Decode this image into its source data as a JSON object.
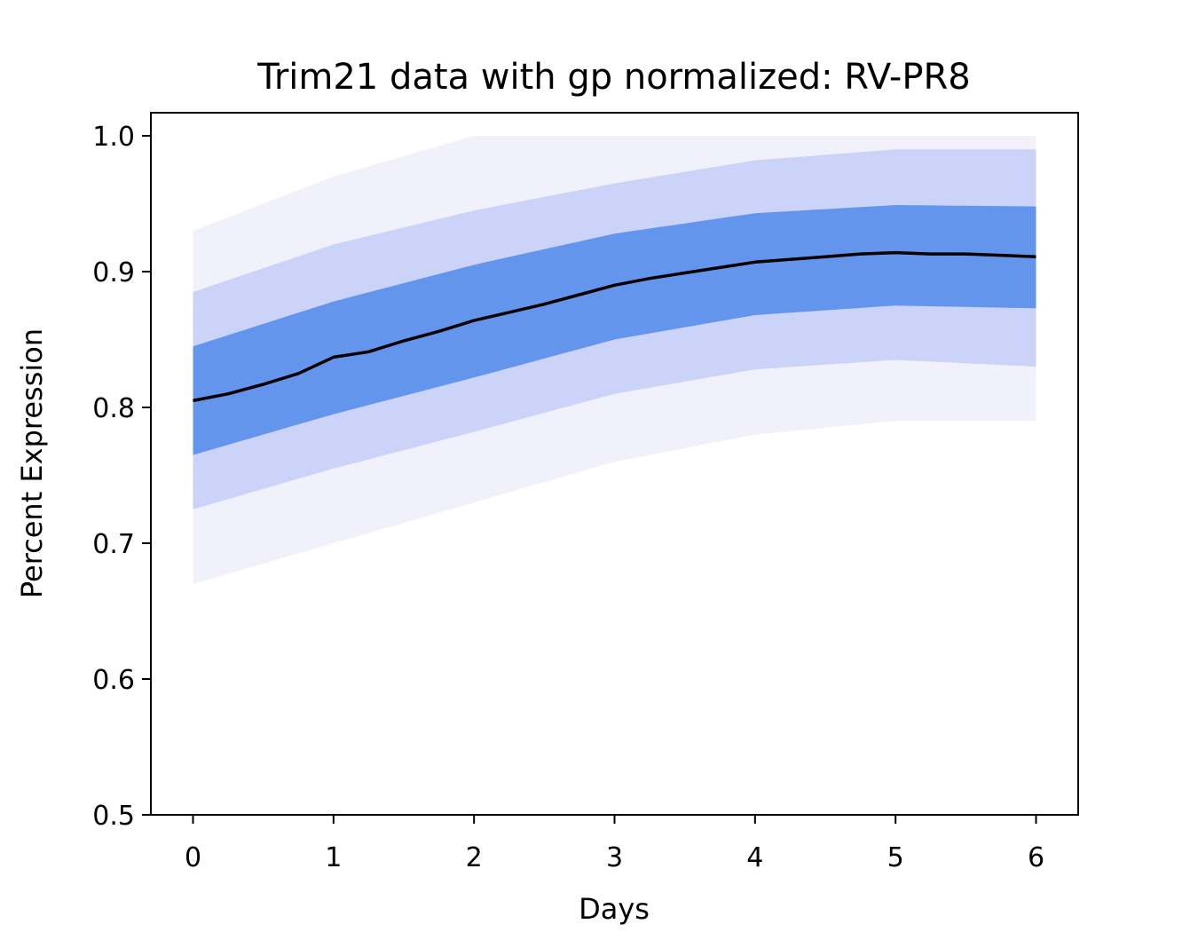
{
  "chart_data": {
    "type": "line",
    "title": "Trim21 data with gp normalized: RV-PR8",
    "xlabel": "Days",
    "ylabel": "Percent Expression",
    "xlim": [
      -0.3,
      6.3
    ],
    "ylim": [
      0.5,
      1.017
    ],
    "xticks": [
      0,
      1,
      2,
      3,
      4,
      5,
      6
    ],
    "xtick_labels": [
      "0",
      "1",
      "2",
      "3",
      "4",
      "5",
      "6"
    ],
    "yticks": [
      0.5,
      0.6,
      0.7,
      0.8,
      0.9,
      1.0
    ],
    "ytick_labels": [
      "0.5",
      "0.6",
      "0.7",
      "0.8",
      "0.9",
      "1.0"
    ],
    "grid": false,
    "legend": "none",
    "colors": {
      "band": "#6495ED",
      "band_faint": "#c4cef8",
      "haze": "#e6e6f8",
      "mean": "#000000"
    },
    "series": [
      {
        "role": "mean",
        "x": [
          0,
          0.25,
          0.5,
          0.75,
          1,
          1.25,
          1.5,
          1.75,
          2,
          2.25,
          2.5,
          2.75,
          3,
          3.25,
          3.5,
          3.75,
          4,
          4.25,
          4.5,
          4.75,
          5,
          5.25,
          5.5,
          5.75,
          6
        ],
        "values": [
          0.805,
          0.81,
          0.817,
          0.825,
          0.837,
          0.841,
          0.849,
          0.856,
          0.864,
          0.87,
          0.876,
          0.883,
          0.89,
          0.895,
          0.899,
          0.903,
          0.907,
          0.909,
          0.911,
          0.913,
          0.914,
          0.913,
          0.913,
          0.912,
          0.911
        ]
      },
      {
        "role": "band-inner",
        "x": [
          0,
          1,
          2,
          3,
          4,
          5,
          6
        ],
        "lower": [
          0.765,
          0.795,
          0.822,
          0.85,
          0.868,
          0.875,
          0.873
        ],
        "upper": [
          0.845,
          0.878,
          0.905,
          0.928,
          0.943,
          0.949,
          0.948
        ]
      },
      {
        "role": "band-outer",
        "x": [
          0,
          1,
          2,
          3,
          4,
          5,
          6
        ],
        "lower": [
          0.725,
          0.755,
          0.782,
          0.81,
          0.828,
          0.835,
          0.83
        ],
        "upper": [
          0.885,
          0.92,
          0.945,
          0.965,
          0.982,
          0.99,
          0.99
        ]
      },
      {
        "role": "band-haze",
        "x": [
          0,
          1,
          2,
          3,
          4,
          5,
          6
        ],
        "lower": [
          0.67,
          0.7,
          0.73,
          0.76,
          0.78,
          0.79,
          0.79
        ],
        "upper": [
          0.93,
          0.97,
          1.0,
          1.0,
          1.0,
          1.0,
          1.0
        ]
      }
    ]
  }
}
